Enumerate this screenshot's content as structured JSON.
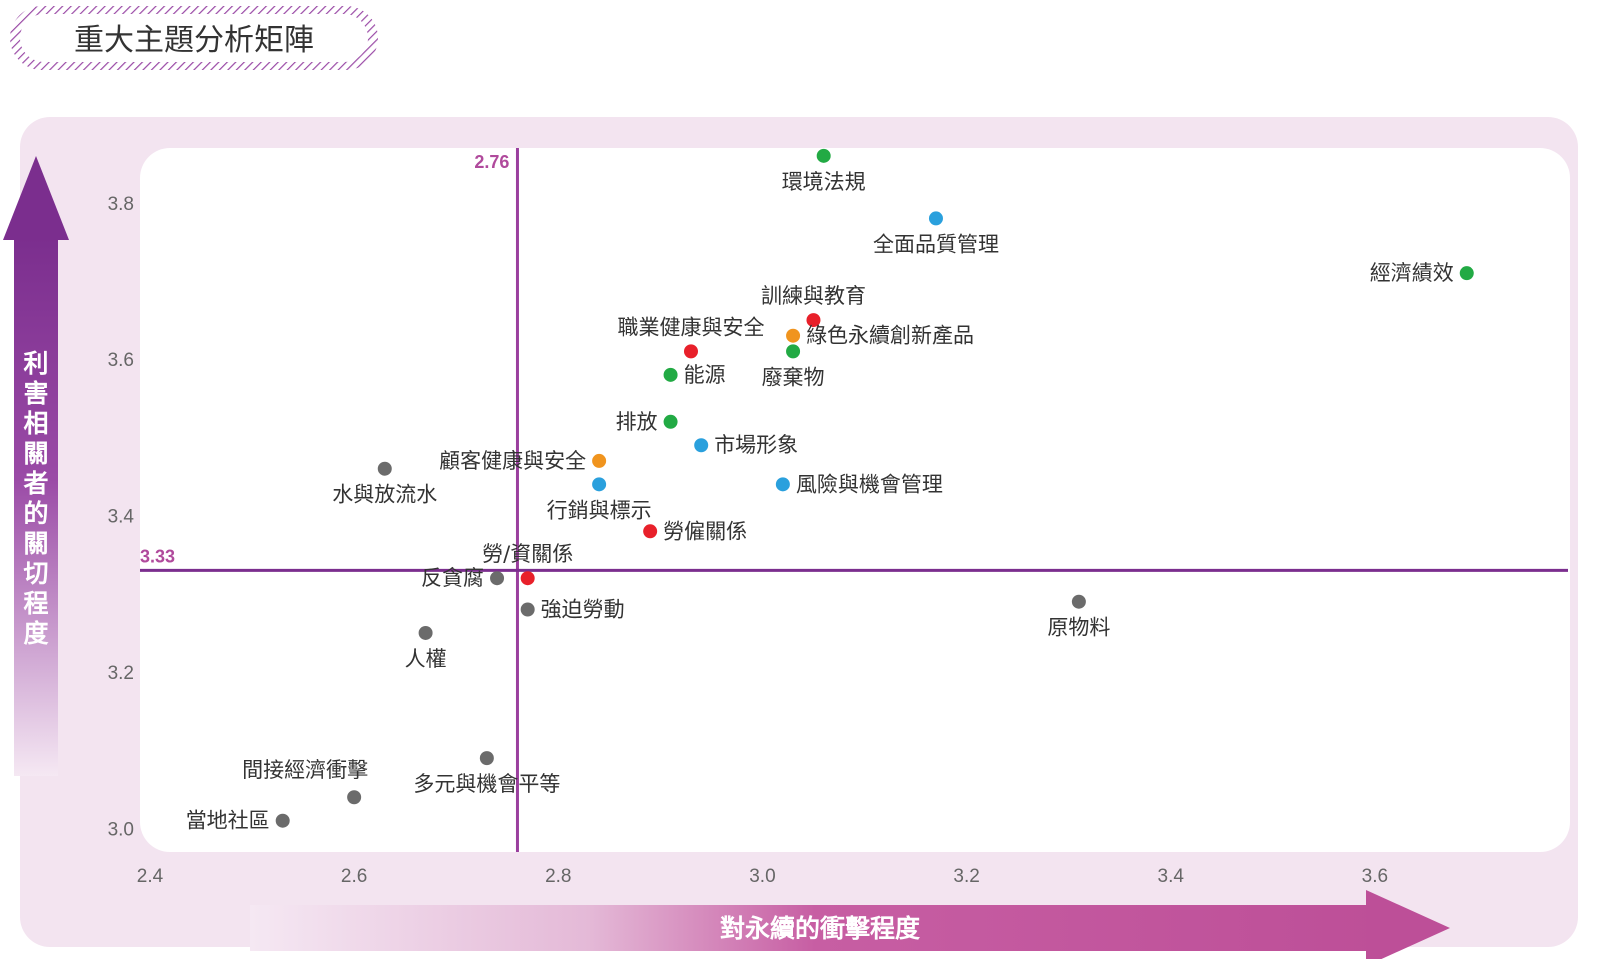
{
  "page_title": "重大主題分析矩陣",
  "colors": {
    "environment": "#22aa44",
    "product": "#2aa0dd",
    "customer": "#f0941e",
    "labor": "#e8202a",
    "social": "#6b6b6b",
    "accent": "#7b2e8e",
    "reference_line": "#9a3f9e",
    "panel": "#f3e4f0"
  },
  "chart_data": {
    "type": "scatter",
    "xlabel": "對永續的衝擊程度",
    "ylabel": "利害相關者的關切程度",
    "xlim": [
      2.4,
      3.75
    ],
    "ylim": [
      2.97,
      3.87
    ],
    "x_ticks": [
      "2.4",
      "2.6",
      "2.8",
      "3.0",
      "3.2",
      "3.4",
      "3.6"
    ],
    "y_ticks": [
      "3.0",
      "3.2",
      "3.4",
      "3.6",
      "3.8"
    ],
    "x_reference": {
      "value": 2.76,
      "label": "2.76"
    },
    "y_reference": {
      "value": 3.33,
      "label": "3.33"
    },
    "points": [
      {
        "label": "環境法規",
        "x": 3.06,
        "y": 3.86,
        "group": "environment",
        "pos": "below"
      },
      {
        "label": "全面品質管理",
        "x": 3.17,
        "y": 3.78,
        "group": "product",
        "pos": "below"
      },
      {
        "label": "經濟績效",
        "x": 3.69,
        "y": 3.71,
        "group": "environment",
        "pos": "left"
      },
      {
        "label": "訓練與教育",
        "x": 3.05,
        "y": 3.65,
        "group": "labor",
        "pos": "above"
      },
      {
        "label": "綠色永續創新產品",
        "x": 3.03,
        "y": 3.63,
        "group": "customer",
        "pos": "right"
      },
      {
        "label": "職業健康與安全",
        "x": 2.93,
        "y": 3.61,
        "group": "labor",
        "pos": "above"
      },
      {
        "label": "廢棄物",
        "x": 3.03,
        "y": 3.61,
        "group": "environment",
        "pos": "below"
      },
      {
        "label": "能源",
        "x": 2.91,
        "y": 3.58,
        "group": "environment",
        "pos": "right"
      },
      {
        "label": "排放",
        "x": 2.91,
        "y": 3.52,
        "group": "environment",
        "pos": "left"
      },
      {
        "label": "市場形象",
        "x": 2.94,
        "y": 3.49,
        "group": "product",
        "pos": "right"
      },
      {
        "label": "顧客健康與安全",
        "x": 2.84,
        "y": 3.47,
        "group": "customer",
        "pos": "left"
      },
      {
        "label": "水與放流水",
        "x": 2.63,
        "y": 3.46,
        "group": "social",
        "pos": "below"
      },
      {
        "label": "行銷與標示",
        "x": 2.84,
        "y": 3.44,
        "group": "product",
        "pos": "below"
      },
      {
        "label": "風險與機會管理",
        "x": 3.02,
        "y": 3.44,
        "group": "product",
        "pos": "right"
      },
      {
        "label": "勞僱關係",
        "x": 2.89,
        "y": 3.38,
        "group": "labor",
        "pos": "right"
      },
      {
        "label": "勞/資關係",
        "x": 2.77,
        "y": 3.32,
        "group": "labor",
        "pos": "above"
      },
      {
        "label": "反貪腐",
        "x": 2.74,
        "y": 3.32,
        "group": "social",
        "pos": "left"
      },
      {
        "label": "強迫勞動",
        "x": 2.77,
        "y": 3.28,
        "group": "social",
        "pos": "right"
      },
      {
        "label": "原物料",
        "x": 3.31,
        "y": 3.29,
        "group": "social",
        "pos": "below"
      },
      {
        "label": "人權",
        "x": 2.67,
        "y": 3.25,
        "group": "social",
        "pos": "below"
      },
      {
        "label": "多元與機會平等",
        "x": 2.73,
        "y": 3.09,
        "group": "social",
        "pos": "below"
      },
      {
        "label": "間接經濟衝擊",
        "x": 2.6,
        "y": 3.04,
        "group": "social",
        "pos": "aboveleft"
      },
      {
        "label": "當地社區",
        "x": 2.53,
        "y": 3.01,
        "group": "social",
        "pos": "left"
      }
    ]
  }
}
